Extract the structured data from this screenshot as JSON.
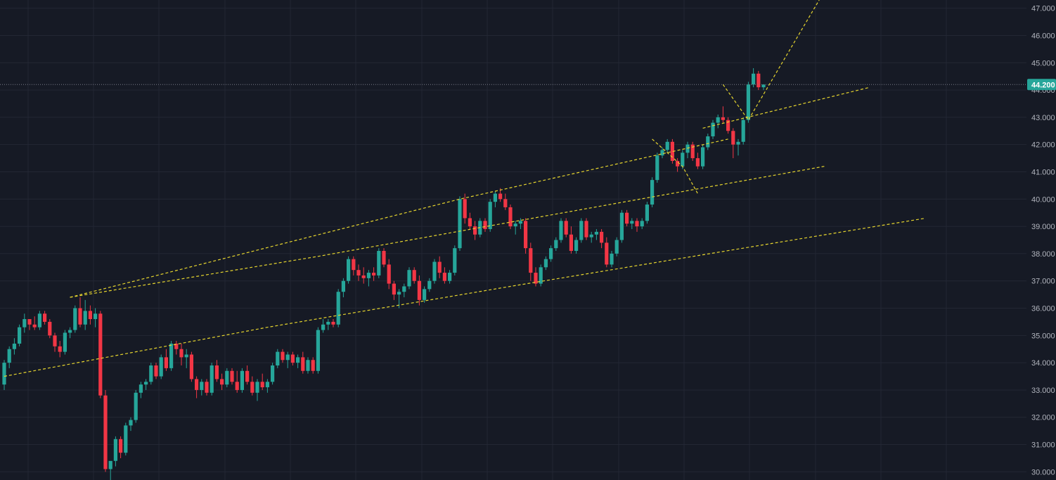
{
  "chart_data": {
    "type": "candlestick",
    "y_axis": {
      "position": "right",
      "range": [
        29.7,
        47.3
      ],
      "ticks": [
        "30.000",
        "31.000",
        "32.000",
        "33.000",
        "34.000",
        "35.000",
        "36.000",
        "37.000",
        "38.000",
        "39.000",
        "40.000",
        "41.000",
        "42.000",
        "43.000",
        "44.000",
        "45.000",
        "46.000",
        "47.000"
      ]
    },
    "x_axis": {
      "bars": 160,
      "labels_visible": false
    },
    "grid": true,
    "current_price": {
      "value": 44.2,
      "label": "44.200"
    },
    "colors": {
      "background": "#161a25",
      "grid": "#232734",
      "up": "#26a69a",
      "down": "#f23645",
      "trendline": "#e6d52e",
      "price_line": "#787b86",
      "axis_text": "#b2b5be"
    },
    "candles": [
      [
        33.2,
        34.1,
        33.0,
        34.0
      ],
      [
        34.0,
        34.6,
        33.8,
        34.5
      ],
      [
        34.5,
        34.9,
        34.3,
        34.7
      ],
      [
        34.7,
        35.4,
        34.6,
        35.3
      ],
      [
        35.3,
        35.8,
        35.1,
        35.6
      ],
      [
        35.6,
        35.6,
        35.2,
        35.4
      ],
      [
        35.4,
        35.7,
        35.2,
        35.3
      ],
      [
        35.3,
        35.9,
        35.2,
        35.8
      ],
      [
        35.8,
        35.9,
        35.4,
        35.5
      ],
      [
        35.5,
        35.6,
        34.9,
        35.0
      ],
      [
        35.0,
        35.1,
        34.4,
        34.6
      ],
      [
        34.6,
        34.8,
        34.2,
        34.4
      ],
      [
        34.4,
        35.2,
        34.3,
        35.1
      ],
      [
        35.1,
        35.3,
        34.9,
        35.2
      ],
      [
        35.2,
        36.1,
        35.1,
        36.0
      ],
      [
        36.0,
        36.4,
        35.3,
        35.4
      ],
      [
        35.4,
        36.3,
        35.2,
        35.9
      ],
      [
        35.9,
        36.1,
        35.4,
        35.6
      ],
      [
        35.6,
        36.0,
        35.3,
        35.8
      ],
      [
        35.8,
        35.9,
        32.7,
        32.8
      ],
      [
        32.8,
        33.0,
        30.0,
        30.1
      ],
      [
        30.1,
        30.3,
        29.7,
        30.4
      ],
      [
        30.4,
        31.3,
        30.2,
        31.2
      ],
      [
        31.2,
        31.3,
        30.5,
        30.7
      ],
      [
        30.7,
        31.8,
        30.6,
        31.7
      ],
      [
        31.7,
        32.0,
        31.5,
        31.9
      ],
      [
        31.9,
        33.0,
        31.8,
        32.9
      ],
      [
        32.9,
        33.3,
        32.7,
        33.2
      ],
      [
        33.2,
        33.4,
        33.0,
        33.3
      ],
      [
        33.3,
        34.0,
        33.2,
        33.9
      ],
      [
        33.9,
        34.0,
        33.4,
        33.5
      ],
      [
        33.5,
        34.3,
        33.4,
        34.2
      ],
      [
        34.2,
        34.5,
        33.7,
        33.8
      ],
      [
        33.8,
        34.8,
        33.7,
        34.7
      ],
      [
        34.7,
        34.8,
        34.3,
        34.5
      ],
      [
        34.5,
        34.7,
        33.9,
        34.2
      ],
      [
        34.2,
        34.5,
        33.8,
        34.3
      ],
      [
        34.3,
        34.4,
        33.3,
        33.4
      ],
      [
        33.4,
        33.5,
        32.7,
        33.0
      ],
      [
        33.0,
        33.4,
        32.8,
        33.3
      ],
      [
        33.3,
        33.4,
        32.8,
        32.9
      ],
      [
        32.9,
        34.0,
        32.8,
        33.9
      ],
      [
        33.9,
        34.1,
        33.3,
        33.4
      ],
      [
        33.4,
        33.6,
        33.0,
        33.2
      ],
      [
        33.2,
        33.8,
        33.1,
        33.7
      ],
      [
        33.7,
        33.8,
        33.2,
        33.3
      ],
      [
        33.3,
        33.7,
        32.9,
        33.0
      ],
      [
        33.0,
        33.8,
        32.9,
        33.7
      ],
      [
        33.7,
        33.9,
        33.2,
        33.3
      ],
      [
        33.3,
        33.5,
        32.8,
        32.9
      ],
      [
        32.9,
        33.4,
        32.6,
        33.3
      ],
      [
        33.3,
        33.6,
        33.0,
        33.1
      ],
      [
        33.1,
        33.4,
        32.9,
        33.3
      ],
      [
        33.3,
        34.0,
        33.2,
        33.9
      ],
      [
        33.9,
        34.5,
        33.8,
        34.4
      ],
      [
        34.4,
        34.5,
        34.0,
        34.1
      ],
      [
        34.1,
        34.4,
        33.8,
        34.3
      ],
      [
        34.3,
        34.4,
        33.9,
        34.0
      ],
      [
        34.0,
        34.3,
        33.8,
        34.2
      ],
      [
        34.2,
        34.4,
        33.6,
        33.7
      ],
      [
        33.7,
        34.2,
        33.6,
        34.1
      ],
      [
        34.1,
        34.2,
        33.6,
        33.7
      ],
      [
        33.7,
        35.3,
        33.6,
        35.2
      ],
      [
        35.2,
        35.6,
        35.1,
        35.4
      ],
      [
        35.4,
        35.6,
        35.2,
        35.5
      ],
      [
        35.5,
        35.6,
        35.3,
        35.4
      ],
      [
        35.4,
        36.7,
        35.3,
        36.6
      ],
      [
        36.6,
        37.1,
        36.4,
        37.0
      ],
      [
        37.0,
        37.9,
        36.9,
        37.8
      ],
      [
        37.8,
        37.9,
        37.2,
        37.4
      ],
      [
        37.4,
        37.6,
        37.0,
        37.2
      ],
      [
        37.2,
        37.5,
        36.9,
        37.1
      ],
      [
        37.1,
        37.4,
        36.8,
        37.3
      ],
      [
        37.3,
        37.5,
        37.0,
        37.2
      ],
      [
        37.2,
        38.2,
        37.1,
        38.1
      ],
      [
        38.1,
        38.2,
        37.5,
        37.6
      ],
      [
        37.6,
        37.8,
        36.7,
        36.9
      ],
      [
        36.9,
        37.0,
        36.3,
        36.5
      ],
      [
        36.5,
        36.7,
        36.0,
        36.6
      ],
      [
        36.6,
        36.9,
        36.4,
        36.8
      ],
      [
        36.8,
        37.5,
        36.7,
        37.4
      ],
      [
        37.4,
        37.5,
        36.9,
        37.0
      ],
      [
        37.0,
        37.2,
        36.1,
        36.3
      ],
      [
        36.3,
        36.8,
        36.2,
        36.7
      ],
      [
        36.7,
        37.1,
        36.6,
        37.0
      ],
      [
        37.0,
        37.8,
        36.9,
        37.7
      ],
      [
        37.7,
        37.9,
        37.1,
        37.3
      ],
      [
        37.3,
        37.5,
        36.9,
        37.0
      ],
      [
        37.0,
        37.4,
        36.9,
        37.3
      ],
      [
        37.3,
        38.3,
        37.2,
        38.2
      ],
      [
        38.2,
        40.1,
        38.1,
        40.0
      ],
      [
        40.0,
        40.2,
        39.1,
        39.3
      ],
      [
        39.3,
        39.5,
        38.9,
        39.0
      ],
      [
        39.0,
        39.2,
        38.5,
        38.7
      ],
      [
        38.7,
        39.3,
        38.6,
        39.2
      ],
      [
        39.2,
        39.3,
        38.8,
        38.9
      ],
      [
        38.9,
        40.0,
        38.8,
        39.9
      ],
      [
        39.9,
        40.3,
        39.7,
        40.2
      ],
      [
        40.2,
        40.4,
        39.9,
        40.0
      ],
      [
        40.0,
        40.2,
        39.6,
        39.7
      ],
      [
        39.7,
        39.8,
        38.9,
        39.0
      ],
      [
        39.0,
        39.2,
        38.7,
        39.1
      ],
      [
        39.1,
        39.3,
        38.9,
        39.2
      ],
      [
        39.2,
        39.3,
        38.0,
        38.2
      ],
      [
        38.2,
        38.4,
        37.0,
        37.3
      ],
      [
        37.3,
        37.5,
        36.8,
        36.9
      ],
      [
        36.9,
        37.6,
        36.8,
        37.5
      ],
      [
        37.5,
        37.9,
        37.4,
        37.8
      ],
      [
        37.8,
        38.3,
        37.7,
        38.2
      ],
      [
        38.2,
        38.6,
        38.1,
        38.5
      ],
      [
        38.5,
        39.3,
        38.4,
        39.2
      ],
      [
        39.2,
        39.3,
        38.6,
        38.7
      ],
      [
        38.7,
        39.0,
        38.0,
        38.1
      ],
      [
        38.1,
        38.6,
        38.0,
        38.5
      ],
      [
        38.5,
        39.3,
        38.4,
        39.2
      ],
      [
        39.2,
        39.3,
        38.5,
        38.6
      ],
      [
        38.6,
        38.8,
        38.4,
        38.7
      ],
      [
        38.7,
        38.9,
        38.5,
        38.8
      ],
      [
        38.8,
        38.9,
        38.2,
        38.4
      ],
      [
        38.4,
        38.6,
        37.5,
        37.6
      ],
      [
        37.6,
        38.1,
        37.5,
        38.0
      ],
      [
        38.0,
        38.6,
        37.9,
        38.5
      ],
      [
        38.5,
        39.6,
        38.4,
        39.5
      ],
      [
        39.5,
        39.6,
        39.0,
        39.1
      ],
      [
        39.1,
        39.3,
        38.9,
        39.2
      ],
      [
        39.2,
        39.3,
        38.8,
        39.0
      ],
      [
        39.0,
        39.3,
        38.9,
        39.2
      ],
      [
        39.2,
        39.9,
        39.1,
        39.8
      ],
      [
        39.8,
        40.8,
        39.7,
        40.7
      ],
      [
        40.7,
        41.7,
        40.6,
        41.6
      ],
      [
        41.6,
        41.9,
        41.5,
        41.8
      ],
      [
        41.8,
        42.2,
        41.7,
        42.1
      ],
      [
        42.1,
        42.2,
        41.3,
        41.4
      ],
      [
        41.4,
        41.5,
        41.0,
        41.2
      ],
      [
        41.2,
        41.8,
        41.1,
        41.7
      ],
      [
        41.7,
        42.1,
        41.5,
        42.0
      ],
      [
        42.0,
        42.1,
        41.4,
        41.5
      ],
      [
        41.5,
        41.7,
        41.1,
        41.2
      ],
      [
        41.2,
        42.0,
        41.1,
        41.9
      ],
      [
        41.9,
        42.4,
        41.8,
        42.3
      ],
      [
        42.3,
        42.9,
        42.2,
        42.8
      ],
      [
        42.8,
        43.1,
        42.6,
        43.0
      ],
      [
        43.0,
        43.4,
        42.8,
        42.9
      ],
      [
        42.9,
        43.0,
        42.4,
        42.5
      ],
      [
        42.5,
        42.6,
        41.5,
        42.0
      ],
      [
        42.0,
        42.2,
        41.6,
        42.1
      ],
      [
        42.1,
        43.0,
        42.0,
        42.9
      ],
      [
        42.9,
        44.3,
        42.8,
        44.2
      ],
      [
        44.2,
        44.8,
        44.1,
        44.6
      ],
      [
        44.6,
        44.7,
        44.0,
        44.1
      ],
      [
        44.1,
        44.2,
        44.0,
        44.2
      ]
    ],
    "trendlines": [
      {
        "name": "upper-channel-line",
        "points": [
          [
            13,
            36.4
          ],
          [
            90,
            40.0
          ],
          [
            143,
            42.2
          ]
        ]
      },
      {
        "name": "middle-channel-line",
        "points": [
          [
            13,
            36.4
          ],
          [
            62,
            37.9
          ],
          [
            162,
            41.2
          ]
        ]
      },
      {
        "name": "lower-channel-line",
        "points": [
          [
            0,
            33.5
          ],
          [
            52,
            35.3
          ],
          [
            100,
            36.8
          ],
          [
            182,
            39.3
          ]
        ]
      },
      {
        "name": "projection-upper-line",
        "points": [
          [
            138,
            42.6
          ],
          [
            171,
            44.1
          ]
        ]
      },
      {
        "name": "projection-zigzag-small",
        "points": [
          [
            128,
            42.2
          ],
          [
            134,
            41.2
          ],
          [
            137,
            40.2
          ]
        ]
      },
      {
        "name": "projection-zigzag-main",
        "points": [
          [
            142,
            44.2
          ],
          [
            147,
            42.9
          ],
          [
            161,
            47.3
          ]
        ]
      }
    ]
  }
}
